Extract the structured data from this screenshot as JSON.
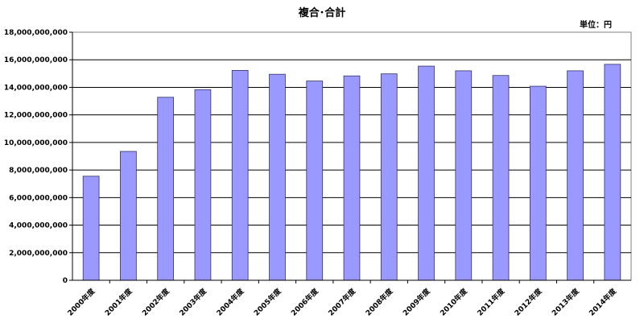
{
  "chart_data": {
    "type": "bar",
    "title": "複合･合計",
    "unit_label": "単位：円",
    "categories": [
      "2000年度",
      "2001年度",
      "2002年度",
      "2003年度",
      "2004年度",
      "2005年度",
      "2006年度",
      "2007年度",
      "2008年度",
      "2009年度",
      "2010年度",
      "2011年度",
      "2012年度",
      "2013年度",
      "2014年度"
    ],
    "values": [
      7550000000,
      9350000000,
      13280000000,
      13830000000,
      15230000000,
      14950000000,
      14460000000,
      14830000000,
      14980000000,
      15540000000,
      15200000000,
      14860000000,
      14080000000,
      15200000000,
      15670000000
    ],
    "ylim": [
      0,
      18000000000
    ],
    "yticks": [
      "0",
      "2,000,000,000",
      "4,000,000,000",
      "6,000,000,000",
      "8,000,000,000",
      "10,000,000,000",
      "12,000,000,000",
      "14,000,000,000",
      "16,000,000,000",
      "18,000,000,000"
    ],
    "grid": true,
    "legend": "none",
    "bar_color": "#9999ff",
    "bar_edge_color": "#333366"
  }
}
